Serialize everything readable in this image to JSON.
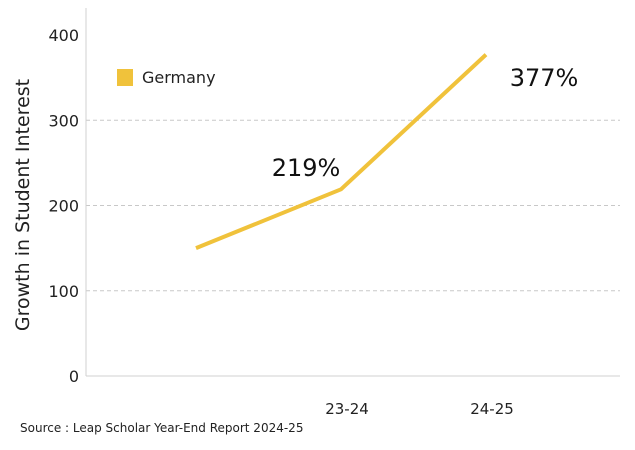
{
  "chart_data": {
    "type": "line",
    "title": "",
    "xlabel": "",
    "ylabel": "Growth in Student Interest",
    "categories": [
      "",
      "23-24",
      "24-25"
    ],
    "series": [
      {
        "name": "Germany",
        "values": [
          150,
          219,
          377
        ],
        "color": "#f0c23b"
      }
    ],
    "data_labels": [
      "",
      "219%",
      "377%"
    ],
    "ylim": [
      0,
      400
    ],
    "yticks": [
      0,
      100,
      200,
      300,
      400
    ],
    "grid": true,
    "grid_style": "dashed horizontal",
    "legend_position": "top-left"
  },
  "source": "Source : Leap Scholar Year-End Report 2024-25"
}
